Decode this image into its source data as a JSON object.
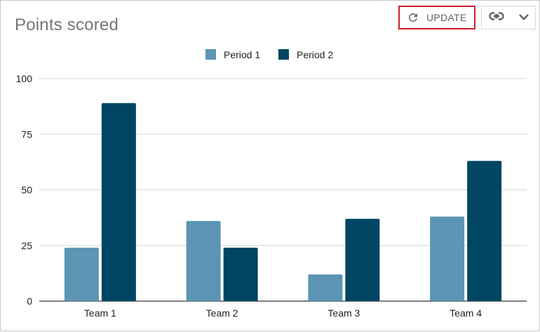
{
  "chart_title": "Points scored",
  "toolbar": {
    "update_label": "UPDATE",
    "refresh_icon": "refresh-icon",
    "link_icon": "link-icon",
    "dropdown_icon": "chevron-down-icon",
    "highlight_color": "#d21f2a"
  },
  "chart_data": {
    "type": "bar",
    "title": "Points scored",
    "categories": [
      "Team 1",
      "Team 2",
      "Team 3",
      "Team 4"
    ],
    "series": [
      {
        "name": "Period 1",
        "color": "#5b95b3",
        "values": [
          24,
          36,
          12,
          38
        ]
      },
      {
        "name": "Period 2",
        "color": "#004563",
        "values": [
          89,
          24,
          37,
          63
        ]
      }
    ],
    "ylim": [
      0,
      100
    ],
    "yticks": [
      0,
      25,
      50,
      75,
      100
    ],
    "grid": true,
    "legend": "top-center"
  }
}
